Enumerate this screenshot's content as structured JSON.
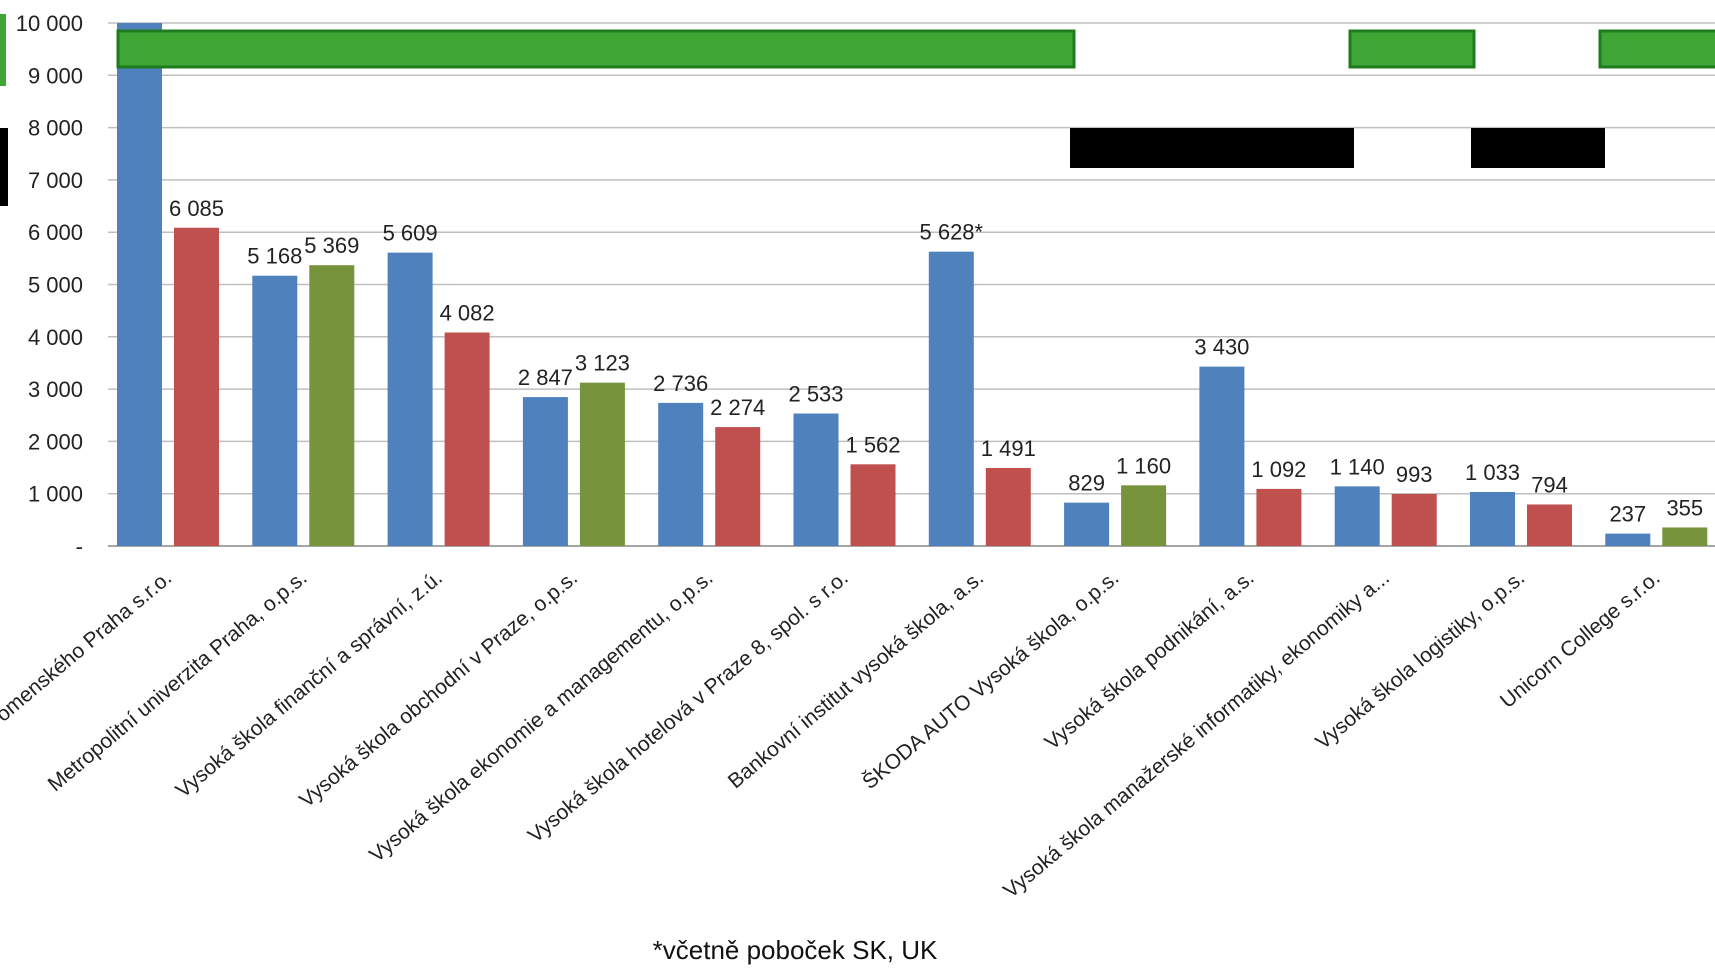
{
  "chart_data": {
    "type": "bar",
    "title": "",
    "xlabel": "",
    "ylabel": "",
    "ylim": [
      0,
      10000
    ],
    "yticks": [
      {
        "value": 0,
        "label": "-"
      },
      {
        "value": 1000,
        "label": "1 000"
      },
      {
        "value": 2000,
        "label": "2 000"
      },
      {
        "value": 3000,
        "label": "3 000"
      },
      {
        "value": 4000,
        "label": "4 000"
      },
      {
        "value": 5000,
        "label": "5 000"
      },
      {
        "value": 6000,
        "label": "6 000"
      },
      {
        "value": 7000,
        "label": "7 000"
      },
      {
        "value": 8000,
        "label": "8 000"
      },
      {
        "value": 9000,
        "label": "9 000"
      },
      {
        "value": 10000,
        "label": "10 000"
      }
    ],
    "grid": true,
    "colors": {
      "blue": "#4f81bd",
      "red": "#c0504d",
      "green": "#77933c"
    },
    "categories": [
      "Vysoká škola J. A. Komenského Praha s.r.o.",
      "Metropolitní univerzita Praha, o.p.s.",
      "Vysoká škola finanční a správní, z.ú.",
      "Vysoká škola obchodní v Praze, o.p.s.",
      "Vysoká škola ekonomie a managementu, o.p.s.",
      "Vysoká škola hotelová v Praze 8, spol. s r.o.",
      "Bankovní institut vysoká škola, a.s.",
      "ŠKODA AUTO Vysoká škola, o.p.s.",
      "Vysoká škola podnikání, a.s.",
      "Vysoká škola manažerské informatiky, ekonomiky a...",
      "Vysoká škola logistiky, o.p.s.",
      "Unicorn College s.r.o."
    ],
    "category_labels": [
      "omenského Praha s.r.o.",
      "Metropolitní univerzita Praha, o.p.s.",
      "Vysoká škola finanční a správní, z.ú.",
      "Vysoká škola obchodní v Praze, o.p.s.",
      "Vysoká škola ekonomie a managementu, o.p.s.",
      "Vysoká škola hotelová v Praze 8, spol. s r.o.",
      "Bankovní institut vysoká škola, a.s.",
      "ŠKODA AUTO Vysoká škola, o.p.s.",
      "Vysoká škola podnikání, a.s.",
      "Vysoká škola manažerské informatiky, ekonomiky a...",
      "Vysoká škola logistiky, o.p.s.",
      "Unicorn College s.r.o."
    ],
    "bars": [
      [
        {
          "value": 10000,
          "color": "blue",
          "label": ""
        },
        {
          "value": 6085,
          "color": "red",
          "label": "6 085"
        }
      ],
      [
        {
          "value": 5168,
          "color": "blue",
          "label": "5 168"
        },
        {
          "value": 5369,
          "color": "green",
          "label": "5 369"
        }
      ],
      [
        {
          "value": 5609,
          "color": "blue",
          "label": "5 609"
        },
        {
          "value": 4082,
          "color": "red",
          "label": "4 082"
        }
      ],
      [
        {
          "value": 2847,
          "color": "blue",
          "label": "2 847"
        },
        {
          "value": 3123,
          "color": "green",
          "label": "3 123"
        }
      ],
      [
        {
          "value": 2736,
          "color": "blue",
          "label": "2 736"
        },
        {
          "value": 2274,
          "color": "red",
          "label": "2 274"
        }
      ],
      [
        {
          "value": 2533,
          "color": "blue",
          "label": "2 533"
        },
        {
          "value": 1562,
          "color": "red",
          "label": "1 562"
        }
      ],
      [
        {
          "value": 5628,
          "color": "blue",
          "label": "5 628*"
        },
        {
          "value": 1491,
          "color": "red",
          "label": "1 491"
        }
      ],
      [
        {
          "value": 829,
          "color": "blue",
          "label": "829"
        },
        {
          "value": 1160,
          "color": "green",
          "label": "1 160"
        }
      ],
      [
        {
          "value": 3430,
          "color": "blue",
          "label": "3 430"
        },
        {
          "value": 1092,
          "color": "red",
          "label": "1 092"
        }
      ],
      [
        {
          "value": 1140,
          "color": "blue",
          "label": "1 140"
        },
        {
          "value": 993,
          "color": "red",
          "label": "993"
        }
      ],
      [
        {
          "value": 1033,
          "color": "blue",
          "label": "1 033"
        },
        {
          "value": 794,
          "color": "red",
          "label": "794"
        }
      ],
      [
        {
          "value": 237,
          "color": "blue",
          "label": "237"
        },
        {
          "value": 355,
          "color": "green",
          "label": "355"
        }
      ]
    ],
    "overlay_colors": {
      "green_fill": "#3fa535",
      "green_stroke": "#1e7b1e",
      "black": "#000000"
    }
  },
  "footnote": "*včetně poboček SK, UK"
}
